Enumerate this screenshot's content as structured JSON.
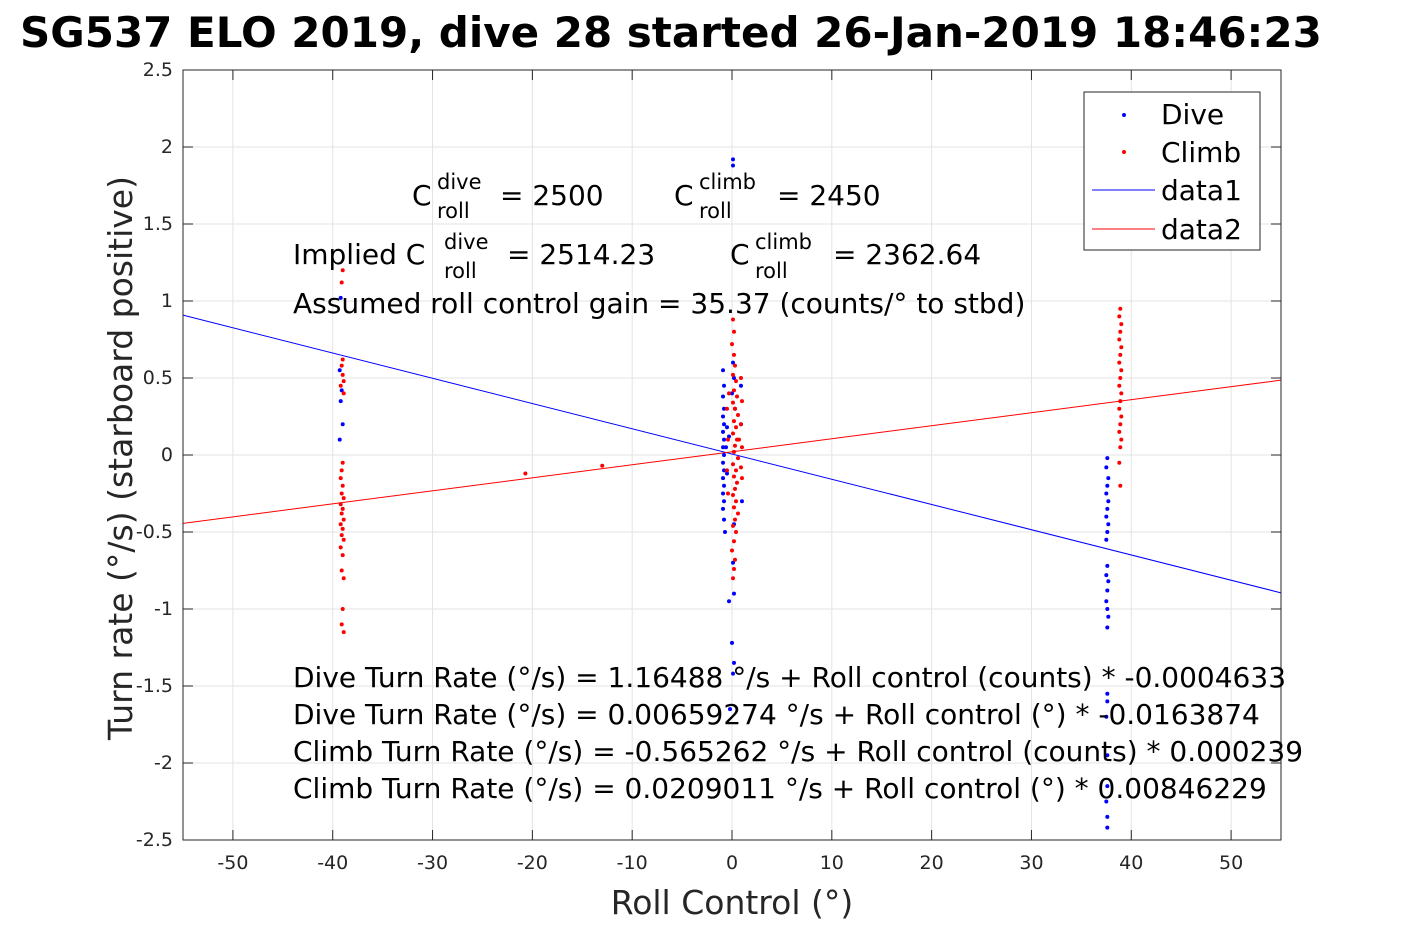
{
  "chart_data": {
    "type": "scatter",
    "title": "SG537 ELO 2019, dive 28 started 26-Jan-2019 18:46:23",
    "xlabel": "Roll Control (°)",
    "ylabel": "Turn rate (°/s) (starboard positive)",
    "xlim": [
      -55,
      55
    ],
    "ylim": [
      -2.5,
      2.5
    ],
    "xticks": [
      -50,
      -40,
      -30,
      -20,
      -10,
      0,
      10,
      20,
      30,
      40,
      50
    ],
    "yticks": [
      -2.5,
      -2,
      -1.5,
      -1,
      -0.5,
      0,
      0.5,
      1,
      1.5,
      2,
      2.5
    ],
    "xtick_labels": [
      "-50",
      "-40",
      "-30",
      "-20",
      "-10",
      "0",
      "10",
      "20",
      "30",
      "40",
      "50"
    ],
    "ytick_labels": [
      "-2.5",
      "-2",
      "-1.5",
      "-1",
      "-0.5",
      "0",
      "0.5",
      "1",
      "1.5",
      "2",
      "2.5"
    ],
    "grid": true,
    "legend_position": "top-right",
    "series": [
      {
        "name": "Dive",
        "kind": "points",
        "color": "#0000ff",
        "points": [
          [
            -39.2,
            1.02
          ],
          [
            -39.3,
            0.55
          ],
          [
            -39.1,
            0.42
          ],
          [
            -39.2,
            0.35
          ],
          [
            -39.0,
            0.2
          ],
          [
            -39.3,
            0.1
          ],
          [
            -0.9,
            0.55
          ],
          [
            -0.8,
            0.45
          ],
          [
            -0.9,
            0.38
          ],
          [
            -0.8,
            0.3
          ],
          [
            -0.9,
            0.25
          ],
          [
            -0.8,
            0.2
          ],
          [
            -0.9,
            0.15
          ],
          [
            -0.8,
            0.1
          ],
          [
            -0.9,
            0.05
          ],
          [
            -0.8,
            0.0
          ],
          [
            -0.9,
            -0.05
          ],
          [
            -0.8,
            -0.1
          ],
          [
            -0.9,
            -0.15
          ],
          [
            -0.8,
            -0.2
          ],
          [
            -0.9,
            -0.25
          ],
          [
            -0.8,
            -0.3
          ],
          [
            -0.9,
            -0.35
          ],
          [
            -0.8,
            -0.42
          ],
          [
            -0.7,
            -0.5
          ],
          [
            -0.6,
            0.05
          ],
          [
            -0.5,
            -0.12
          ],
          [
            -0.5,
            0.18
          ],
          [
            -0.3,
            0.12
          ],
          [
            0.1,
            1.92
          ],
          [
            0.1,
            1.88
          ],
          [
            0.1,
            0.6
          ],
          [
            0.2,
            0.5
          ],
          [
            0.0,
            0.4
          ],
          [
            0.3,
            0.3
          ],
          [
            0.2,
            -0.45
          ],
          [
            0.1,
            -0.7
          ],
          [
            0.2,
            -0.9
          ],
          [
            -0.3,
            -0.95
          ],
          [
            0.0,
            -1.22
          ],
          [
            0.2,
            -1.35
          ],
          [
            0.1,
            -1.42
          ],
          [
            -0.2,
            -1.65
          ],
          [
            0.9,
            0.45
          ],
          [
            0.9,
            0.2
          ],
          [
            1.0,
            -0.3
          ],
          [
            37.6,
            -0.02
          ],
          [
            37.5,
            -0.08
          ],
          [
            37.7,
            -0.15
          ],
          [
            37.6,
            -0.2
          ],
          [
            37.5,
            -0.25
          ],
          [
            37.7,
            -0.3
          ],
          [
            37.6,
            -0.35
          ],
          [
            37.5,
            -0.4
          ],
          [
            37.7,
            -0.45
          ],
          [
            37.6,
            -0.5
          ],
          [
            37.5,
            -0.55
          ],
          [
            37.6,
            -0.72
          ],
          [
            37.5,
            -0.78
          ],
          [
            37.7,
            -0.82
          ],
          [
            37.6,
            -0.88
          ],
          [
            37.5,
            -0.95
          ],
          [
            37.6,
            -1.0
          ],
          [
            37.7,
            -1.05
          ],
          [
            37.6,
            -1.12
          ],
          [
            37.6,
            -1.55
          ],
          [
            37.6,
            -1.6
          ],
          [
            37.5,
            -1.7
          ],
          [
            37.6,
            -1.95
          ],
          [
            37.6,
            -2.15
          ],
          [
            37.5,
            -2.25
          ],
          [
            37.6,
            -2.35
          ],
          [
            37.6,
            -2.42
          ]
        ]
      },
      {
        "name": "Climb",
        "kind": "points",
        "color": "#ff0000",
        "points": [
          [
            -39.0,
            1.2
          ],
          [
            -39.1,
            1.12
          ],
          [
            -39.0,
            0.62
          ],
          [
            -39.1,
            0.58
          ],
          [
            -39.0,
            0.52
          ],
          [
            -38.9,
            0.48
          ],
          [
            -39.2,
            0.45
          ],
          [
            -38.9,
            0.4
          ],
          [
            -39.0,
            -0.05
          ],
          [
            -39.1,
            -0.1
          ],
          [
            -39.2,
            -0.15
          ],
          [
            -39.0,
            -0.2
          ],
          [
            -39.1,
            -0.25
          ],
          [
            -38.9,
            -0.28
          ],
          [
            -39.2,
            -0.32
          ],
          [
            -39.0,
            -0.35
          ],
          [
            -39.1,
            -0.38
          ],
          [
            -38.9,
            -0.42
          ],
          [
            -39.2,
            -0.45
          ],
          [
            -39.0,
            -0.48
          ],
          [
            -39.1,
            -0.52
          ],
          [
            -38.9,
            -0.55
          ],
          [
            -39.2,
            -0.6
          ],
          [
            -39.0,
            -0.65
          ],
          [
            -39.1,
            -0.75
          ],
          [
            -38.9,
            -0.8
          ],
          [
            -39.0,
            -1.0
          ],
          [
            -39.1,
            -1.1
          ],
          [
            -38.9,
            -1.15
          ],
          [
            -20.7,
            -0.12
          ],
          [
            -13.0,
            -0.07
          ],
          [
            0.1,
            0.88
          ],
          [
            0.2,
            0.8
          ],
          [
            0.0,
            0.72
          ],
          [
            0.2,
            0.65
          ],
          [
            0.3,
            0.58
          ],
          [
            0.1,
            0.52
          ],
          [
            0.4,
            0.48
          ],
          [
            0.2,
            0.42
          ],
          [
            0.5,
            0.38
          ],
          [
            0.1,
            0.34
          ],
          [
            0.3,
            0.3
          ],
          [
            0.6,
            0.26
          ],
          [
            0.2,
            0.22
          ],
          [
            0.4,
            0.18
          ],
          [
            0.1,
            0.14
          ],
          [
            0.5,
            0.1
          ],
          [
            0.3,
            0.06
          ],
          [
            0.2,
            0.02
          ],
          [
            0.6,
            -0.02
          ],
          [
            0.1,
            -0.06
          ],
          [
            0.4,
            -0.1
          ],
          [
            0.2,
            -0.14
          ],
          [
            0.5,
            -0.18
          ],
          [
            0.3,
            -0.22
          ],
          [
            0.1,
            -0.26
          ],
          [
            0.4,
            -0.3
          ],
          [
            0.2,
            -0.34
          ],
          [
            0.6,
            -0.38
          ],
          [
            0.3,
            -0.42
          ],
          [
            0.1,
            -0.46
          ],
          [
            0.4,
            -0.5
          ],
          [
            0.2,
            -0.56
          ],
          [
            0.0,
            -0.62
          ],
          [
            0.3,
            -0.68
          ],
          [
            0.2,
            -0.74
          ],
          [
            0.1,
            -0.8
          ],
          [
            0.9,
            0.5
          ],
          [
            1.0,
            0.35
          ],
          [
            0.9,
            0.2
          ],
          [
            1.0,
            0.05
          ],
          [
            0.9,
            -0.08
          ],
          [
            1.0,
            -0.15
          ],
          [
            -0.5,
            0.3
          ],
          [
            -0.4,
            0.1
          ],
          [
            -0.5,
            -0.1
          ],
          [
            -0.4,
            -0.25
          ],
          [
            -0.3,
            0.4
          ],
          [
            0.7,
            0.1
          ],
          [
            38.9,
            0.95
          ],
          [
            38.8,
            0.9
          ],
          [
            39.0,
            0.85
          ],
          [
            38.9,
            0.8
          ],
          [
            38.8,
            0.75
          ],
          [
            39.0,
            0.7
          ],
          [
            38.9,
            0.65
          ],
          [
            38.8,
            0.6
          ],
          [
            39.0,
            0.55
          ],
          [
            38.9,
            0.5
          ],
          [
            38.8,
            0.45
          ],
          [
            39.0,
            0.4
          ],
          [
            38.9,
            0.35
          ],
          [
            38.8,
            0.3
          ],
          [
            39.0,
            0.25
          ],
          [
            38.9,
            0.2
          ],
          [
            38.8,
            0.15
          ],
          [
            39.0,
            0.1
          ],
          [
            38.9,
            0.05
          ],
          [
            38.8,
            -0.05
          ],
          [
            38.9,
            -0.2
          ]
        ]
      },
      {
        "name": "data1",
        "kind": "line",
        "color": "#0000ff",
        "x": [
          -55,
          55
        ],
        "y": [
          0.908,
          -0.895
        ]
      },
      {
        "name": "data2",
        "kind": "line",
        "color": "#ff0000",
        "x": [
          -55,
          55
        ],
        "y": [
          -0.444,
          0.486
        ]
      }
    ],
    "annotations": {
      "c_roll_dive": "= 2500",
      "c_roll_climb": "= 2450",
      "implied_prefix": "Implied C",
      "implied_dive": "= 2514.23",
      "implied_climb": "= 2362.64",
      "c_letter": "C",
      "sub_roll": "roll",
      "sup_dive": "dive",
      "sup_climb": "climb",
      "gain": "Assumed roll control gain = 35.37 (counts/° to stbd)",
      "equations": [
        "Dive Turn Rate (°/s) = 1.16488 °/s + Roll control (counts) * -0.0004633",
        "Dive Turn Rate (°/s) = 0.00659274 °/s + Roll control (°) * -0.0163874",
        "Climb Turn Rate (°/s) = -0.565262 °/s + Roll control (counts) * 0.000239",
        "Climb Turn Rate (°/s) = 0.0209011 °/s + Roll control (°) * 0.00846229"
      ]
    }
  }
}
